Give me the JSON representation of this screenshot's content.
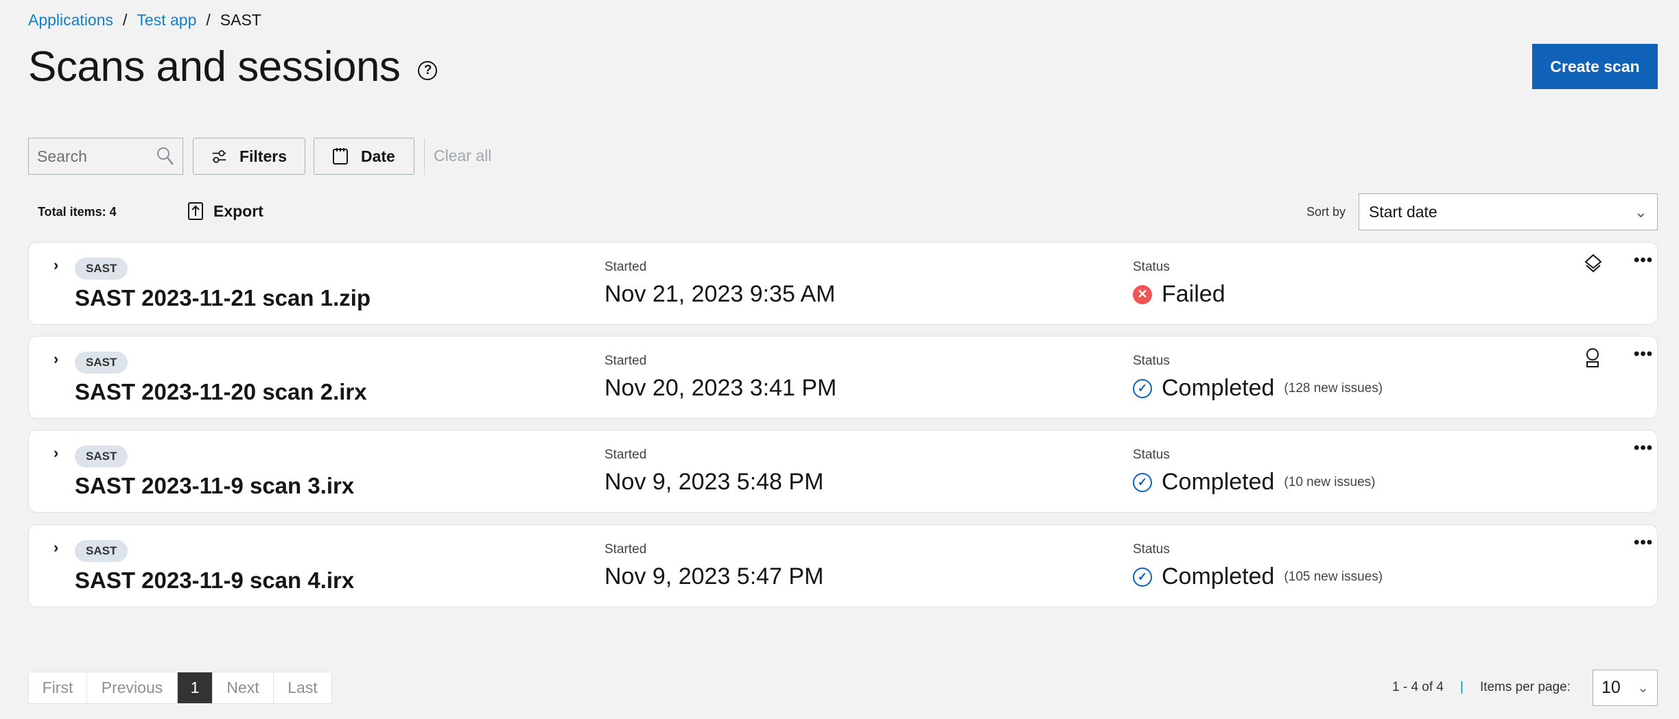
{
  "breadcrumb": [
    "Applications",
    "Test app",
    "SAST"
  ],
  "title": "Scans and sessions",
  "create_label": "Create scan",
  "toolbar": {
    "search_placeholder": "Search",
    "filters": "Filters",
    "date": "Date",
    "clear_all": "Clear all"
  },
  "total_items": "Total items: 4",
  "export": "Export",
  "sort": {
    "label": "Sort by",
    "value": "Start date"
  },
  "scans": [
    {
      "tag": "SAST",
      "name": "SAST 2023-11-21 scan 1.zip",
      "started_label": "Started",
      "started": "Nov 21, 2023 9:35 AM",
      "status_label": "Status",
      "status": "Failed",
      "issues": "",
      "icon": "layers-icon"
    },
    {
      "tag": "SAST",
      "name": "SAST 2023-11-20 scan 2.irx",
      "started_label": "Started",
      "started": "Nov 20, 2023 3:41 PM",
      "status_label": "Status",
      "status": "Completed",
      "issues": "(128 new issues)",
      "icon": "user-icon"
    },
    {
      "tag": "SAST",
      "name": "SAST 2023-11-9 scan 3.irx",
      "started_label": "Started",
      "started": "Nov 9, 2023 5:48 PM",
      "status_label": "Status",
      "status": "Completed",
      "issues": "(10 new issues)",
      "icon": ""
    },
    {
      "tag": "SAST",
      "name": "SAST 2023-11-9 scan 4.irx",
      "started_label": "Started",
      "started": "Nov 9, 2023 5:47 PM",
      "status_label": "Status",
      "status": "Completed",
      "issues": "(105 new issues)",
      "icon": ""
    }
  ],
  "pagination": {
    "first": "First",
    "previous": "Previous",
    "current": "1",
    "next": "Next",
    "last": "Last",
    "range": "1 - 4 of 4",
    "separator": "|",
    "per_page_label": "Items per page:",
    "per_page": "10"
  },
  "colors": {
    "link": "#0f7fcf",
    "primary": "#0f62b8",
    "failed": "#f05555",
    "completed": "#0f62b8"
  }
}
